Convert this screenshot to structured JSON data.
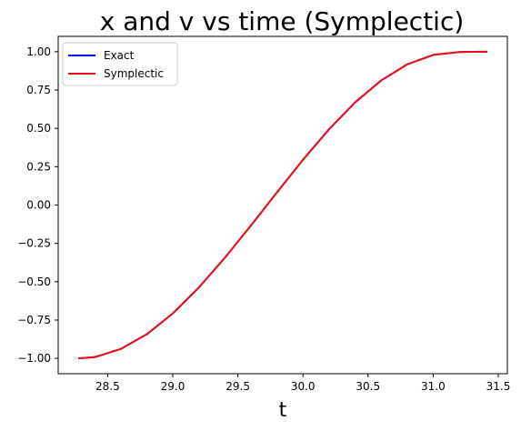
{
  "chart_data": {
    "type": "line",
    "title": "x and v vs time (Symplectic)",
    "xlabel": "t",
    "ylabel": "",
    "xlim": [
      28.12,
      31.57
    ],
    "ylim": [
      -1.1,
      1.1
    ],
    "xticks": [
      "28.5",
      "29.0",
      "29.5",
      "30.0",
      "30.5",
      "31.0",
      "31.5"
    ],
    "yticks": [
      "−1.00",
      "−0.75",
      "−0.50",
      "−0.25",
      "0.00",
      "0.25",
      "0.50",
      "0.75",
      "1.00"
    ],
    "grid": false,
    "legend": {
      "position": "upper-left",
      "entries": [
        "Exact",
        "Symplectic"
      ]
    },
    "x": [
      28.274,
      28.4,
      28.6,
      28.8,
      29.0,
      29.2,
      29.4,
      29.6,
      29.8,
      30.0,
      30.2,
      30.4,
      30.6,
      30.8,
      31.0,
      31.2,
      31.416
    ],
    "series": [
      {
        "name": "Exact",
        "color": "#0000ff",
        "values": [
          -1.0,
          -0.992,
          -0.939,
          -0.843,
          -0.707,
          -0.538,
          -0.344,
          -0.134,
          0.082,
          0.295,
          0.494,
          0.669,
          0.812,
          0.917,
          0.979,
          0.998,
          1.0
        ]
      },
      {
        "name": "Symplectic",
        "color": "#ee1111",
        "values": [
          -1.0,
          -0.992,
          -0.939,
          -0.843,
          -0.707,
          -0.538,
          -0.344,
          -0.134,
          0.082,
          0.295,
          0.494,
          0.669,
          0.812,
          0.917,
          0.979,
          0.998,
          1.0
        ]
      }
    ]
  }
}
